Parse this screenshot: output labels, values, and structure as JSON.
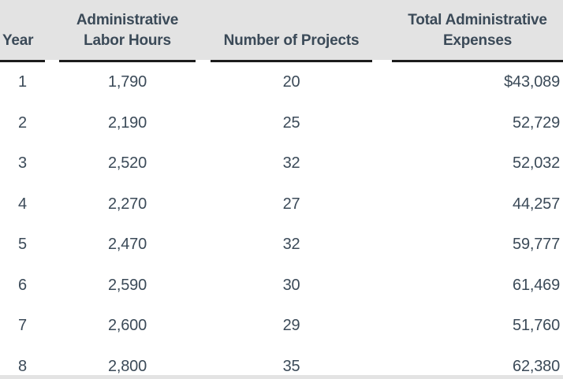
{
  "chart_data": {
    "type": "table",
    "columns": [
      "Year",
      "Administrative Labor Hours",
      "Number of Projects",
      "Total Administrative Expenses"
    ],
    "rows": [
      [
        "1",
        "1,790",
        "20",
        "$43,089"
      ],
      [
        "2",
        "2,190",
        "25",
        "52,729"
      ],
      [
        "3",
        "2,520",
        "32",
        "52,032"
      ],
      [
        "4",
        "2,270",
        "27",
        "44,257"
      ],
      [
        "5",
        "2,470",
        "32",
        "59,777"
      ],
      [
        "6",
        "2,590",
        "30",
        "61,469"
      ],
      [
        "7",
        "2,600",
        "29",
        "51,760"
      ],
      [
        "8",
        "2,800",
        "35",
        "62,380"
      ]
    ],
    "layout_hints": {
      "column_alignments": [
        "center",
        "center",
        "center",
        "right"
      ],
      "header_style": "gray band with dark underline per column"
    }
  },
  "colors": {
    "header_bg": "#e3e3e3",
    "text": "#3b4a58",
    "rule": "#1c1c1c"
  }
}
